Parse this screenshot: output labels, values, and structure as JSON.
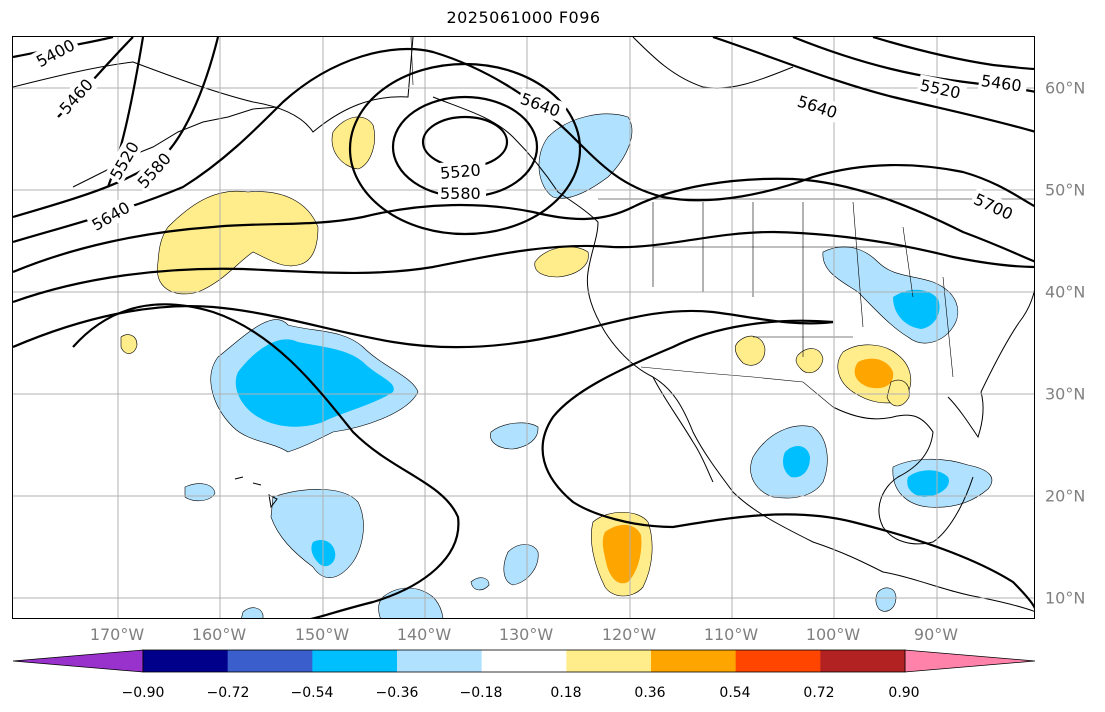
{
  "title": "2025061000 F096",
  "lon_labels": [
    "170°W",
    "160°W",
    "150°W",
    "140°W",
    "130°W",
    "120°W",
    "110°W",
    "100°W",
    "90°W"
  ],
  "lat_labels": [
    "60°N",
    "50°N",
    "40°N",
    "30°N",
    "20°N",
    "10°N"
  ],
  "contour_labels": [
    "5400",
    "5460",
    "5520",
    "5580",
    "5640",
    "5640",
    "5520",
    "5580",
    "5640",
    "5520",
    "5460",
    "5700"
  ],
  "colorbar": {
    "ticks": [
      "−0.90",
      "−0.72",
      "−0.54",
      "−0.36",
      "−0.18",
      "0.18",
      "0.36",
      "0.54",
      "0.72",
      "0.90"
    ],
    "colors": [
      "#9932cc",
      "#00008b",
      "#3a5fcd",
      "#00bfff",
      "#b0e2ff",
      "#ffffff",
      "#ffec8b",
      "#ffa500",
      "#ff4500",
      "#b22222",
      "#ff82ab"
    ]
  }
}
